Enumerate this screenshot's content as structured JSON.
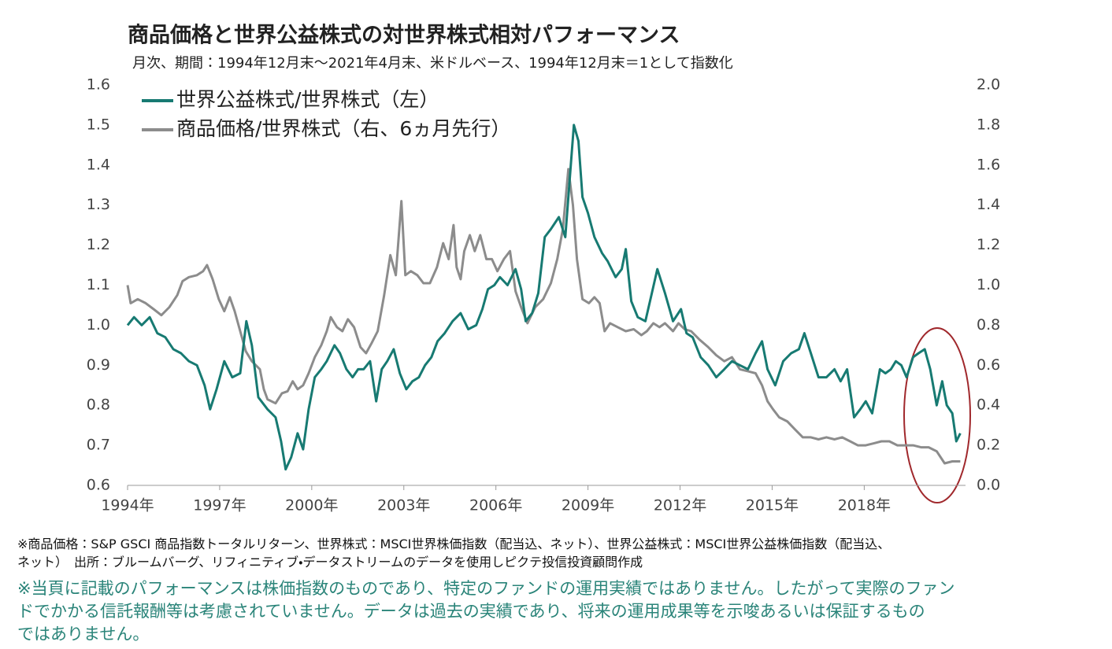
{
  "chart_data": {
    "type": "line",
    "title": "商品価格と世界公益株式の対世界株式相対パフォーマンス",
    "subtitle": "月次、期間：1994年12月末～2021年4月末、米ドルベース、1994年12月末＝1として指数化",
    "xlim": [
      1994,
      2021.3
    ],
    "xticks": [
      {
        "value": 1994,
        "label": "1994年"
      },
      {
        "value": 1997,
        "label": "1997年"
      },
      {
        "value": 2000,
        "label": "2000年"
      },
      {
        "value": 2003,
        "label": "2003年"
      },
      {
        "value": 2006,
        "label": "2006年"
      },
      {
        "value": 2009,
        "label": "2009年"
      },
      {
        "value": 2012,
        "label": "2012年"
      },
      {
        "value": 2015,
        "label": "2015年"
      },
      {
        "value": 2018,
        "label": "2018年"
      }
    ],
    "ylim": [
      0.6,
      1.6
    ],
    "yticks": [
      0.6,
      0.7,
      0.8,
      0.9,
      {
        "value": 1,
        "label": "1.0"
      },
      1.1,
      1.2,
      1.3,
      1.4,
      1.5,
      1.6
    ],
    "y2lim": [
      0,
      2
    ],
    "y2ticks": [
      {
        "value": 0,
        "label": "0.0"
      },
      0.2,
      0.4,
      0.6,
      0.8,
      {
        "value": 1,
        "label": "1.0"
      },
      1.2,
      1.4,
      1.6,
      1.8,
      {
        "value": 2,
        "label": "2.0"
      }
    ],
    "legend": "upper-left",
    "series": [
      {
        "name": "世界公益株式/世界株式（左）",
        "color": "#177a72",
        "axis": "y",
        "x": [
          1994.0,
          1994.21,
          1994.46,
          1994.72,
          1994.97,
          1995.23,
          1995.49,
          1995.74,
          1996.0,
          1996.26,
          1996.51,
          1996.69,
          1996.9,
          1997.15,
          1997.41,
          1997.67,
          1997.87,
          1998.05,
          1998.26,
          1998.56,
          1998.82,
          1999.0,
          1999.15,
          1999.33,
          1999.54,
          1999.72,
          1999.9,
          2000.1,
          2000.31,
          2000.49,
          2000.74,
          2000.92,
          2001.13,
          2001.33,
          2001.51,
          2001.69,
          2001.9,
          2002.1,
          2002.28,
          2002.46,
          2002.67,
          2002.87,
          2003.08,
          2003.28,
          2003.49,
          2003.69,
          2003.9,
          2004.1,
          2004.33,
          2004.59,
          2004.85,
          2005.1,
          2005.36,
          2005.56,
          2005.74,
          2005.95,
          2006.13,
          2006.38,
          2006.64,
          2006.82,
          2006.97,
          2007.18,
          2007.38,
          2007.59,
          2007.79,
          2008.05,
          2008.26,
          2008.44,
          2008.54,
          2008.69,
          2008.82,
          2009.0,
          2009.21,
          2009.46,
          2009.64,
          2009.9,
          2010.1,
          2010.23,
          2010.41,
          2010.62,
          2010.87,
          2011.08,
          2011.26,
          2011.51,
          2011.77,
          2012.03,
          2012.21,
          2012.41,
          2012.67,
          2012.92,
          2013.18,
          2013.44,
          2013.69,
          2013.95,
          2014.21,
          2014.46,
          2014.67,
          2014.85,
          2015.1,
          2015.36,
          2015.62,
          2015.87,
          2016.05,
          2016.26,
          2016.51,
          2016.77,
          2017.03,
          2017.23,
          2017.44,
          2017.67,
          2017.87,
          2018.05,
          2018.26,
          2018.51,
          2018.69,
          2018.87,
          2019.03,
          2019.21,
          2019.38,
          2019.59,
          2019.77,
          2019.97,
          2020.15,
          2020.36,
          2020.54,
          2020.69,
          2020.87,
          2021.0,
          2021.13
        ],
        "values": [
          1.0,
          1.02,
          1.0,
          1.02,
          0.98,
          0.97,
          0.94,
          0.93,
          0.91,
          0.9,
          0.85,
          0.79,
          0.84,
          0.91,
          0.87,
          0.88,
          1.01,
          0.95,
          0.82,
          0.79,
          0.77,
          0.71,
          0.64,
          0.67,
          0.73,
          0.69,
          0.79,
          0.87,
          0.89,
          0.91,
          0.95,
          0.93,
          0.89,
          0.87,
          0.89,
          0.89,
          0.91,
          0.81,
          0.89,
          0.91,
          0.94,
          0.88,
          0.84,
          0.86,
          0.87,
          0.9,
          0.92,
          0.96,
          0.98,
          1.01,
          1.03,
          0.99,
          1.0,
          1.04,
          1.09,
          1.1,
          1.12,
          1.1,
          1.14,
          1.09,
          1.01,
          1.03,
          1.08,
          1.22,
          1.24,
          1.27,
          1.22,
          1.4,
          1.5,
          1.46,
          1.32,
          1.28,
          1.22,
          1.18,
          1.16,
          1.12,
          1.14,
          1.19,
          1.06,
          1.02,
          1.01,
          1.08,
          1.14,
          1.08,
          1.01,
          1.04,
          0.98,
          0.97,
          0.92,
          0.9,
          0.87,
          0.89,
          0.91,
          0.9,
          0.89,
          0.93,
          0.96,
          0.89,
          0.85,
          0.91,
          0.93,
          0.94,
          0.98,
          0.93,
          0.87,
          0.87,
          0.89,
          0.86,
          0.89,
          0.77,
          0.79,
          0.81,
          0.78,
          0.89,
          0.88,
          0.89,
          0.91,
          0.9,
          0.87,
          0.92,
          0.93,
          0.94,
          0.89,
          0.8,
          0.86,
          0.8,
          0.78,
          0.71,
          0.73
        ]
      },
      {
        "name": "商品価格/世界株式（右、6ヵ月先行）",
        "color": "#8c8c8c",
        "axis": "y2",
        "x": [
          1994.0,
          1994.1,
          1994.33,
          1994.59,
          1994.85,
          1995.1,
          1995.36,
          1995.62,
          1995.79,
          1996.0,
          1996.26,
          1996.46,
          1996.59,
          1996.77,
          1996.97,
          1997.15,
          1997.33,
          1997.49,
          1997.67,
          1997.85,
          1998.05,
          1998.31,
          1998.44,
          1998.56,
          1998.82,
          1999.03,
          1999.21,
          1999.38,
          1999.54,
          1999.72,
          1999.9,
          2000.1,
          2000.31,
          2000.49,
          2000.62,
          2000.82,
          2001.0,
          2001.18,
          2001.38,
          2001.59,
          2001.77,
          2001.95,
          2002.15,
          2002.36,
          2002.56,
          2002.74,
          2002.92,
          2003.05,
          2003.23,
          2003.44,
          2003.64,
          2003.85,
          2004.08,
          2004.28,
          2004.46,
          2004.62,
          2004.72,
          2004.85,
          2004.97,
          2005.15,
          2005.31,
          2005.49,
          2005.69,
          2005.87,
          2006.05,
          2006.26,
          2006.46,
          2006.64,
          2006.82,
          2007.03,
          2007.28,
          2007.54,
          2007.79,
          2008.0,
          2008.18,
          2008.36,
          2008.51,
          2008.64,
          2008.82,
          2009.03,
          2009.21,
          2009.38,
          2009.54,
          2009.72,
          2009.97,
          2010.23,
          2010.49,
          2010.74,
          2010.92,
          2011.13,
          2011.33,
          2011.51,
          2011.77,
          2011.95,
          2012.15,
          2012.36,
          2012.62,
          2012.92,
          2013.18,
          2013.44,
          2013.69,
          2013.95,
          2014.21,
          2014.46,
          2014.67,
          2014.85,
          2015.03,
          2015.23,
          2015.49,
          2015.74,
          2016.0,
          2016.26,
          2016.51,
          2016.77,
          2017.03,
          2017.28,
          2017.54,
          2017.79,
          2018.05,
          2018.31,
          2018.56,
          2018.82,
          2019.08,
          2019.33,
          2019.59,
          2019.85,
          2020.1,
          2020.36,
          2020.62,
          2020.87,
          2021.13
        ],
        "values": [
          1.0,
          0.91,
          0.93,
          0.91,
          0.88,
          0.85,
          0.89,
          0.95,
          1.02,
          1.04,
          1.05,
          1.07,
          1.1,
          1.03,
          0.93,
          0.87,
          0.94,
          0.87,
          0.77,
          0.67,
          0.62,
          0.58,
          0.48,
          0.43,
          0.41,
          0.46,
          0.47,
          0.52,
          0.48,
          0.5,
          0.56,
          0.64,
          0.7,
          0.77,
          0.84,
          0.79,
          0.77,
          0.83,
          0.79,
          0.69,
          0.66,
          0.71,
          0.77,
          0.95,
          1.15,
          1.05,
          1.42,
          1.05,
          1.07,
          1.05,
          1.01,
          1.01,
          1.09,
          1.21,
          1.13,
          1.3,
          1.09,
          1.03,
          1.17,
          1.25,
          1.17,
          1.25,
          1.13,
          1.13,
          1.07,
          1.13,
          1.17,
          0.97,
          0.89,
          0.81,
          0.89,
          0.93,
          1.01,
          1.13,
          1.28,
          1.58,
          1.4,
          1.13,
          0.93,
          0.91,
          0.94,
          0.91,
          0.77,
          0.81,
          0.79,
          0.77,
          0.78,
          0.75,
          0.77,
          0.81,
          0.79,
          0.81,
          0.77,
          0.81,
          0.78,
          0.77,
          0.73,
          0.69,
          0.65,
          0.62,
          0.64,
          0.58,
          0.57,
          0.56,
          0.5,
          0.42,
          0.38,
          0.34,
          0.32,
          0.28,
          0.24,
          0.24,
          0.23,
          0.24,
          0.23,
          0.24,
          0.22,
          0.2,
          0.2,
          0.21,
          0.22,
          0.22,
          0.2,
          0.2,
          0.2,
          0.19,
          0.19,
          0.17,
          0.11,
          0.12,
          0.12
        ]
      }
    ]
  },
  "notes": {
    "source": [
      "※商品価格：S&P GSCI 商品指数トータルリターン、世界株式：MSCI世界株価指数（配当込、ネット）、世界公益株式：MSCI世界公益株価指数（配当込、",
      "ネット）　出所：ブルームバーグ、リフィニティブ・データストリームのデータを使用しピクテ投信投資顧問作成"
    ],
    "disclaimer": [
      "※当頁に記載のパフォーマンスは株価指数のものであり、特定のファンドの運用実績ではありません。したがって実際のファン",
      "ドでかかる信託報酬等は考慮されていません。データは過去の実績であり、将来の運用成果等を示唆あるいは保証するもの",
      "ではありません。"
    ]
  }
}
